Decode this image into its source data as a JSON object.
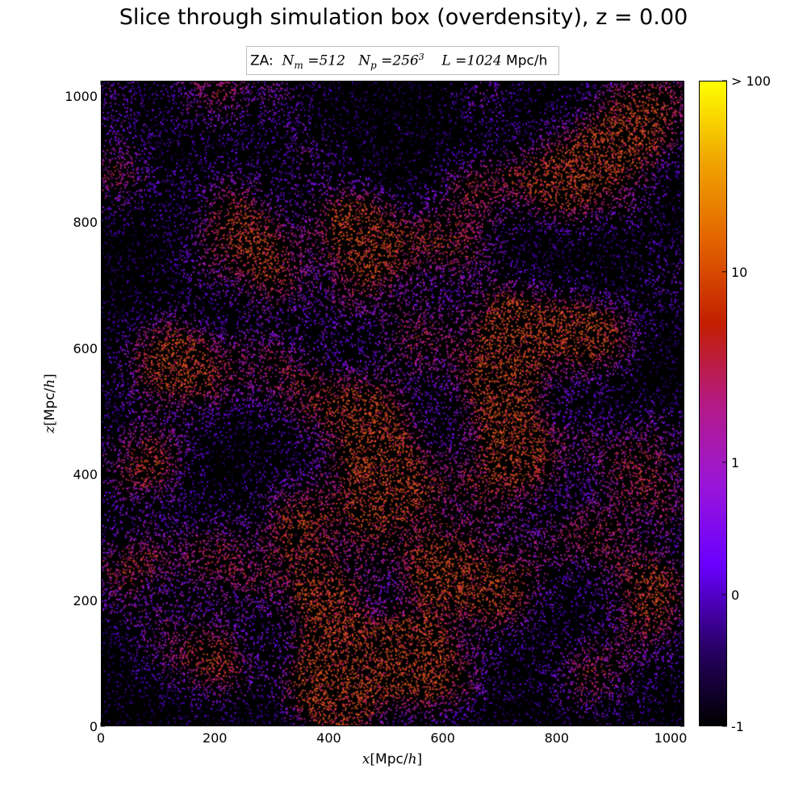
{
  "chart_data": {
    "type": "heatmap",
    "title": "Slice through simulation box (overdensity), z = 0.00",
    "legend": {
      "prefix": "ZA:",
      "n_m_symbol": "N",
      "n_m_sub": "m",
      "n_m_value": "512",
      "n_p_symbol": "N",
      "n_p_sub": "p",
      "n_p_base": "256",
      "n_p_exp": "3",
      "l_symbol": "L",
      "l_value": "1024",
      "l_unit": "Mpc/h",
      "placement": "top-center"
    },
    "xlabel": {
      "var": "x",
      "text": "Mpc/",
      "unit_var": "h"
    },
    "ylabel": {
      "var": "z",
      "text": "Mpc/",
      "unit_var": "h"
    },
    "xlim": [
      0,
      1024
    ],
    "ylim": [
      0,
      1024
    ],
    "xticks": [
      {
        "value": 0,
        "label": "0"
      },
      {
        "value": 200,
        "label": "200"
      },
      {
        "value": 400,
        "label": "400"
      },
      {
        "value": 600,
        "label": "600"
      },
      {
        "value": 800,
        "label": "800"
      },
      {
        "value": 1000,
        "label": "1000"
      }
    ],
    "yticks": [
      {
        "value": 0,
        "label": "0"
      },
      {
        "value": 200,
        "label": "200"
      },
      {
        "value": 400,
        "label": "400"
      },
      {
        "value": 600,
        "label": "600"
      },
      {
        "value": 800,
        "label": "800"
      },
      {
        "value": 1000,
        "label": "1000"
      }
    ],
    "grid": false,
    "colorbar": {
      "colormap": "gnuplot",
      "stops": [
        "#000000",
        "#2a006a",
        "#6a00ff",
        "#9a16d8",
        "#b41a84",
        "#c21f00",
        "#e36200",
        "#f0a400",
        "#ffff00"
      ],
      "ticks": [
        {
          "value": -1,
          "label": "-1",
          "frac": 0.0
        },
        {
          "value": 0,
          "label": "0",
          "frac": 0.204
        },
        {
          "value": 1,
          "label": "1",
          "frac": 0.409
        },
        {
          "value": 10,
          "label": "10",
          "frac": 0.704
        },
        {
          "value": 100,
          "label": "> 100",
          "frac": 1.0
        }
      ]
    },
    "notable_overdense_regions": [
      {
        "x": 20,
        "z": 880
      },
      {
        "x": 200,
        "z": 1010
      },
      {
        "x": 230,
        "z": 820
      },
      {
        "x": 290,
        "z": 750
      },
      {
        "x": 460,
        "z": 770
      },
      {
        "x": 560,
        "z": 620
      },
      {
        "x": 630,
        "z": 770
      },
      {
        "x": 820,
        "z": 870
      },
      {
        "x": 930,
        "z": 990
      },
      {
        "x": 720,
        "z": 620
      },
      {
        "x": 190,
        "z": 560
      },
      {
        "x": 360,
        "z": 530
      },
      {
        "x": 700,
        "z": 500
      },
      {
        "x": 470,
        "z": 440
      },
      {
        "x": 740,
        "z": 440
      },
      {
        "x": 500,
        "z": 390
      },
      {
        "x": 940,
        "z": 390
      },
      {
        "x": 60,
        "z": 410
      },
      {
        "x": 200,
        "z": 270
      },
      {
        "x": 350,
        "z": 340
      },
      {
        "x": 590,
        "z": 270
      },
      {
        "x": 710,
        "z": 230
      },
      {
        "x": 420,
        "z": 160
      },
      {
        "x": 560,
        "z": 120
      },
      {
        "x": 180,
        "z": 110
      },
      {
        "x": 430,
        "z": 40
      },
      {
        "x": 860,
        "z": 80
      },
      {
        "x": 960,
        "z": 170
      },
      {
        "x": 100,
        "z": 570
      },
      {
        "x": 850,
        "z": 610
      }
    ]
  }
}
